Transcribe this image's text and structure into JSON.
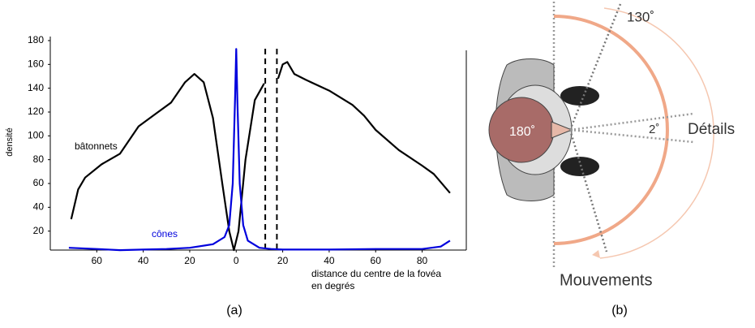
{
  "chart_data": {
    "type": "line",
    "ylabel": "densité",
    "xlabel": [
      "distance du centre de la fovéa",
      "en degrés"
    ],
    "xlim": [
      -80,
      99
    ],
    "ylim": [
      0,
      180
    ],
    "xticks": [
      {
        "value": -60,
        "label": "60"
      },
      {
        "value": -40,
        "label": "40"
      },
      {
        "value": -20,
        "label": "20"
      },
      0,
      20,
      40,
      60,
      80
    ],
    "yticks": [
      20,
      40,
      60,
      80,
      100,
      120,
      140,
      160,
      180
    ],
    "vlines": [
      12.5,
      17.5
    ],
    "series": [
      {
        "name": "bâtonnets",
        "color": "#000000",
        "x": [
          -71,
          -68,
          -65,
          -58,
          -50,
          -42,
          -35,
          -28,
          -22,
          -18,
          -14,
          -10,
          -6,
          -3,
          -1,
          1,
          4,
          8,
          12,
          15,
          18,
          20,
          22,
          25,
          30,
          40,
          50,
          55,
          60,
          70,
          80,
          85,
          92
        ],
        "values": [
          30,
          55,
          65,
          76,
          85,
          108,
          118,
          128,
          145,
          152,
          145,
          115,
          60,
          20,
          4,
          20,
          80,
          130,
          144,
          null,
          148,
          160,
          162,
          152,
          147,
          138,
          126,
          117,
          105,
          88,
          75,
          68,
          52
        ]
      },
      {
        "name": "cônes",
        "color": "#0000dd",
        "x": [
          -72,
          -60,
          -50,
          -40,
          -30,
          -20,
          -10,
          -5,
          -3,
          -1.5,
          -0.5,
          0,
          0.5,
          1.5,
          3,
          5,
          10,
          15,
          20,
          40,
          60,
          80,
          88,
          92
        ],
        "values": [
          6,
          5,
          4,
          4.5,
          5,
          6,
          9,
          15,
          25,
          60,
          130,
          173,
          130,
          60,
          25,
          12,
          6,
          5,
          4.5,
          4.5,
          5,
          5,
          7,
          12
        ]
      }
    ],
    "caption": "(a)"
  },
  "diagram": {
    "angle_large": "130˚",
    "angle_full": "180˚",
    "angle_small": "2˚",
    "label_details": "Détails",
    "label_movements": "Mouvements",
    "caption": "(b)"
  }
}
